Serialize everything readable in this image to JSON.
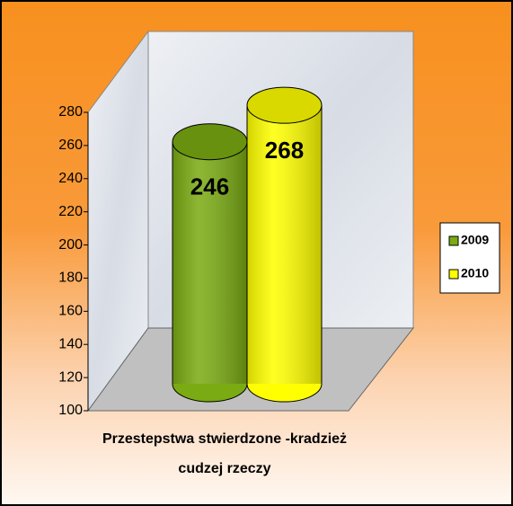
{
  "chart_data": {
    "type": "cylinder",
    "categories": [
      "Przestepstwa stwierdzone -kradzież\ncudzej rzeczy"
    ],
    "series": [
      {
        "name": "2009",
        "color": "#7aab12",
        "values": [
          246
        ]
      },
      {
        "name": "2010",
        "color": "#ffff00",
        "values": [
          268
        ]
      }
    ],
    "ylim": [
      100,
      280
    ],
    "yticks": [
      100,
      120,
      140,
      160,
      180,
      200,
      220,
      240,
      260,
      280
    ],
    "grid": false,
    "legend": "right",
    "data_labels": true
  }
}
